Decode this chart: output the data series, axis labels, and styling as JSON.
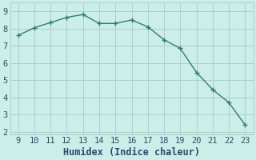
{
  "x": [
    9,
    10,
    11,
    12,
    13,
    14,
    15,
    16,
    17,
    18,
    19,
    20,
    21,
    22,
    23
  ],
  "y": [
    7.6,
    8.05,
    8.35,
    8.65,
    8.82,
    8.3,
    8.3,
    8.5,
    8.1,
    7.35,
    6.85,
    5.45,
    4.45,
    3.7,
    2.4
  ],
  "xlabel": "Humidex (Indice chaleur)",
  "ylabel": "",
  "xlim": [
    8.5,
    23.5
  ],
  "ylim": [
    1.85,
    9.5
  ],
  "yticks": [
    2,
    3,
    4,
    5,
    6,
    7,
    8,
    9
  ],
  "xticks": [
    9,
    10,
    11,
    12,
    13,
    14,
    15,
    16,
    17,
    18,
    19,
    20,
    21,
    22,
    23
  ],
  "line_color": "#2e7d6e",
  "bg_color": "#cceee8",
  "grid_color": "#aacfcc",
  "marker": "+",
  "marker_size": 4,
  "line_width": 1.0,
  "font_color": "#2a4a6e",
  "tick_font_size": 7.5,
  "xlabel_font_size": 8.5
}
